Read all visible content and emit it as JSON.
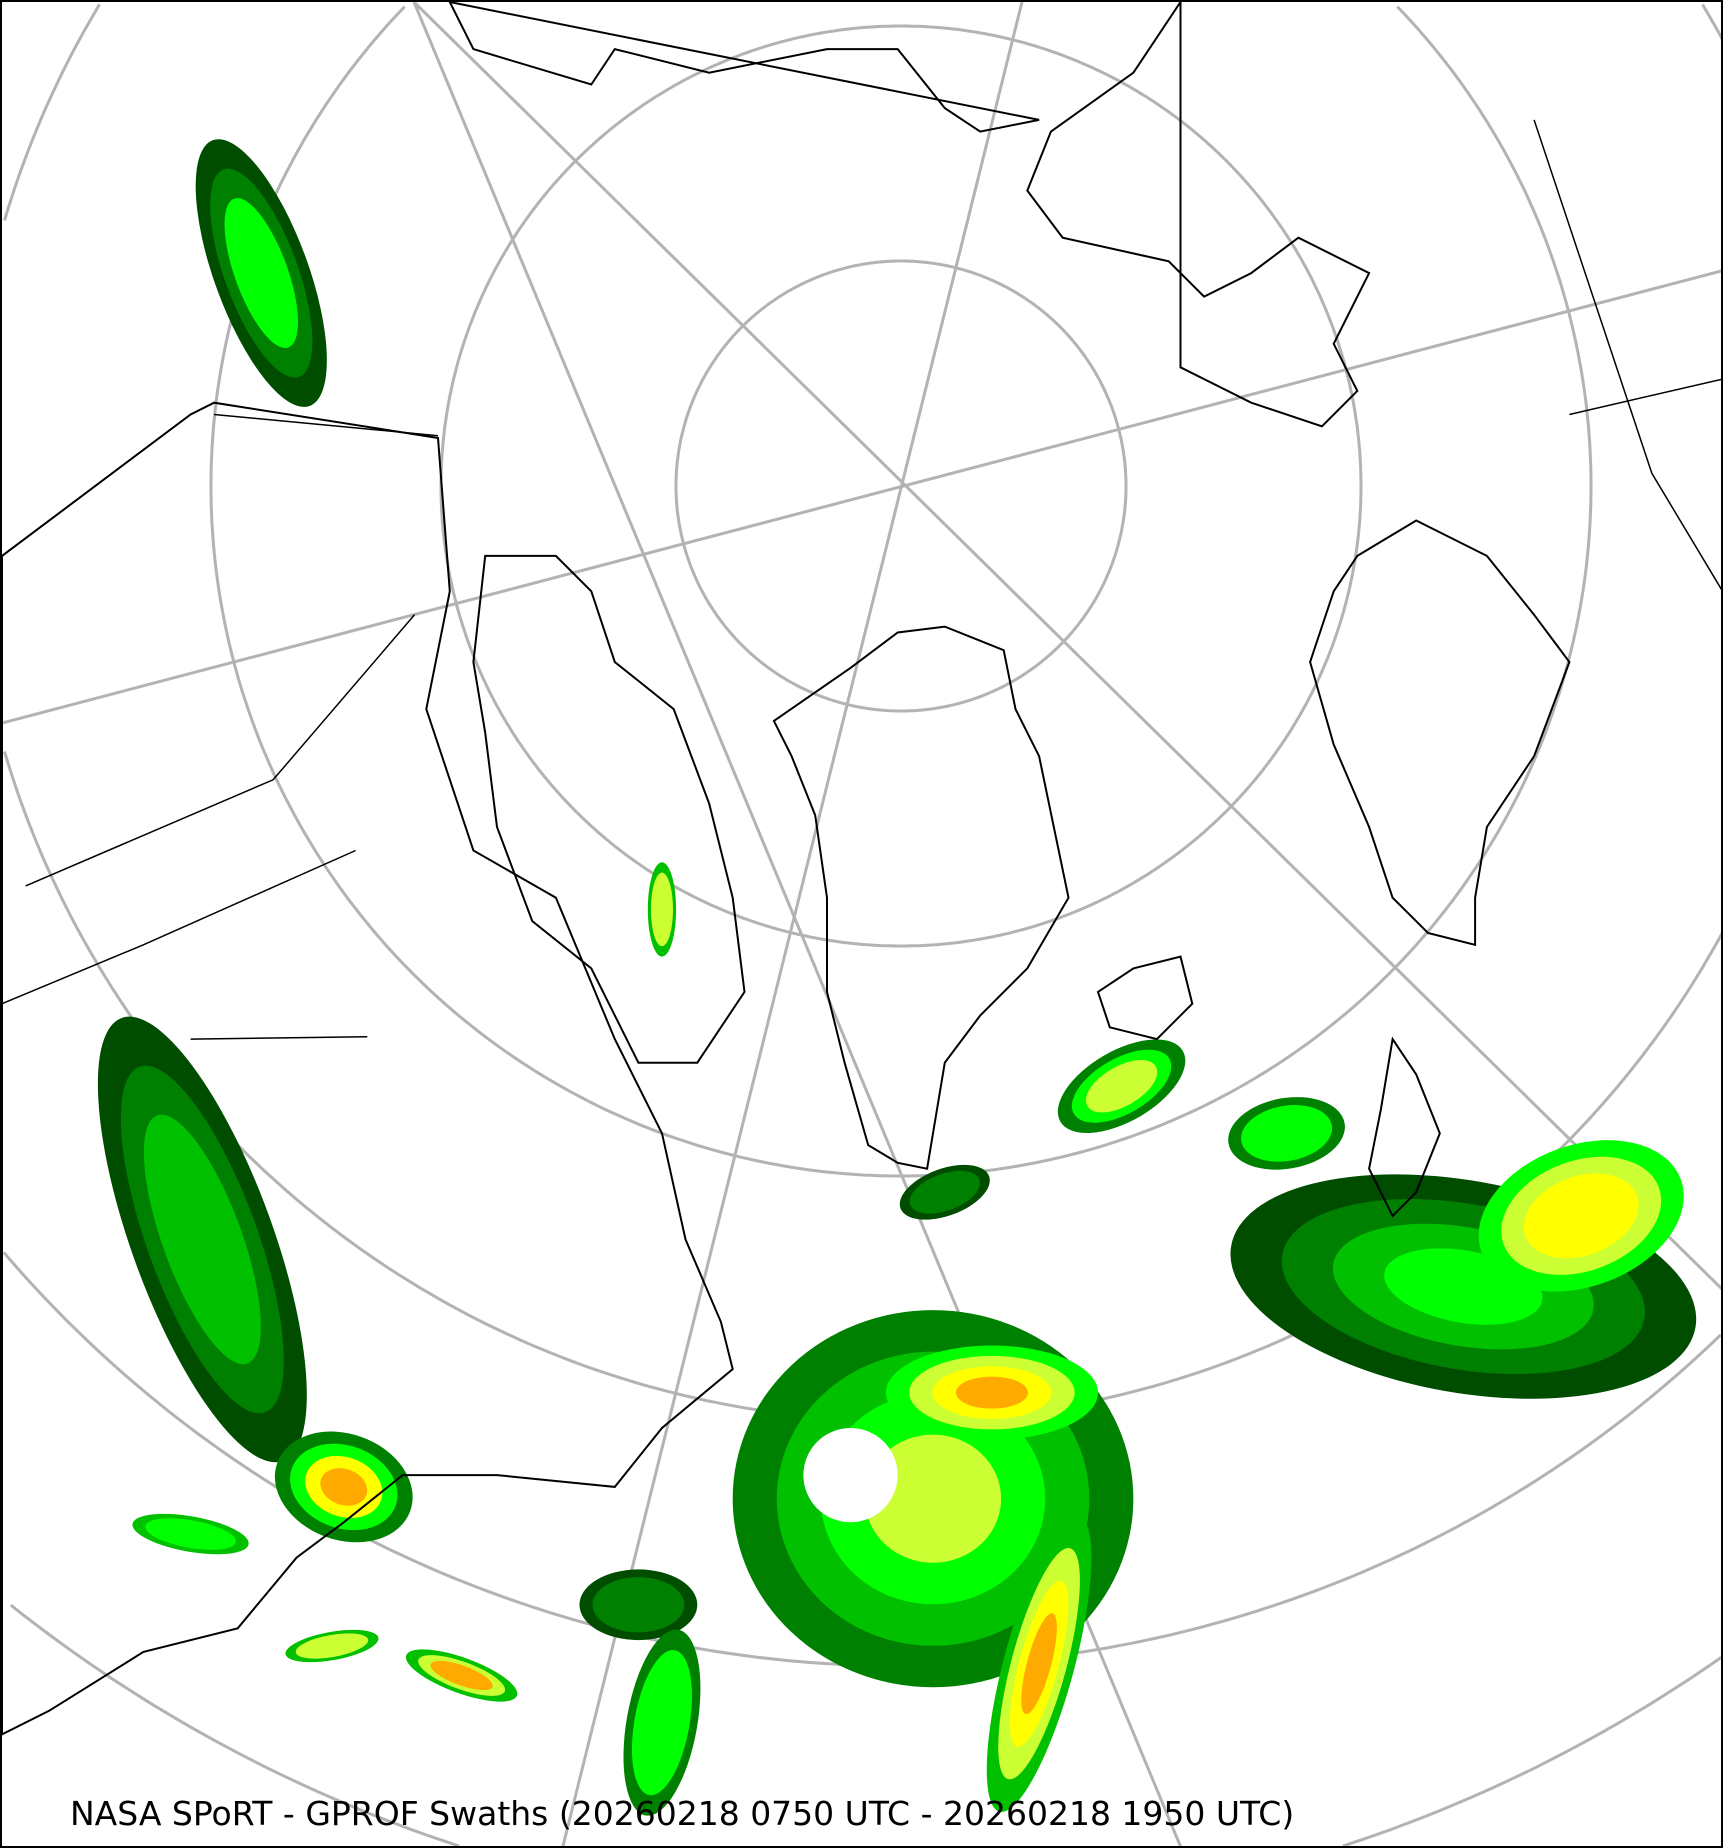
{
  "caption": "NASA SPoRT - GPROF Swaths (20260218 0750 UTC - 20260218 1950 UTC)",
  "map": {
    "projection": "north-polar-stereographic",
    "graticule_color": "#b3b3b3",
    "coastline_color": "#000000",
    "precip_colors": [
      "#004d00",
      "#008000",
      "#00c000",
      "#00ff00",
      "#ccff33",
      "#ffff00",
      "#ffaa00",
      "#ff5500"
    ]
  }
}
